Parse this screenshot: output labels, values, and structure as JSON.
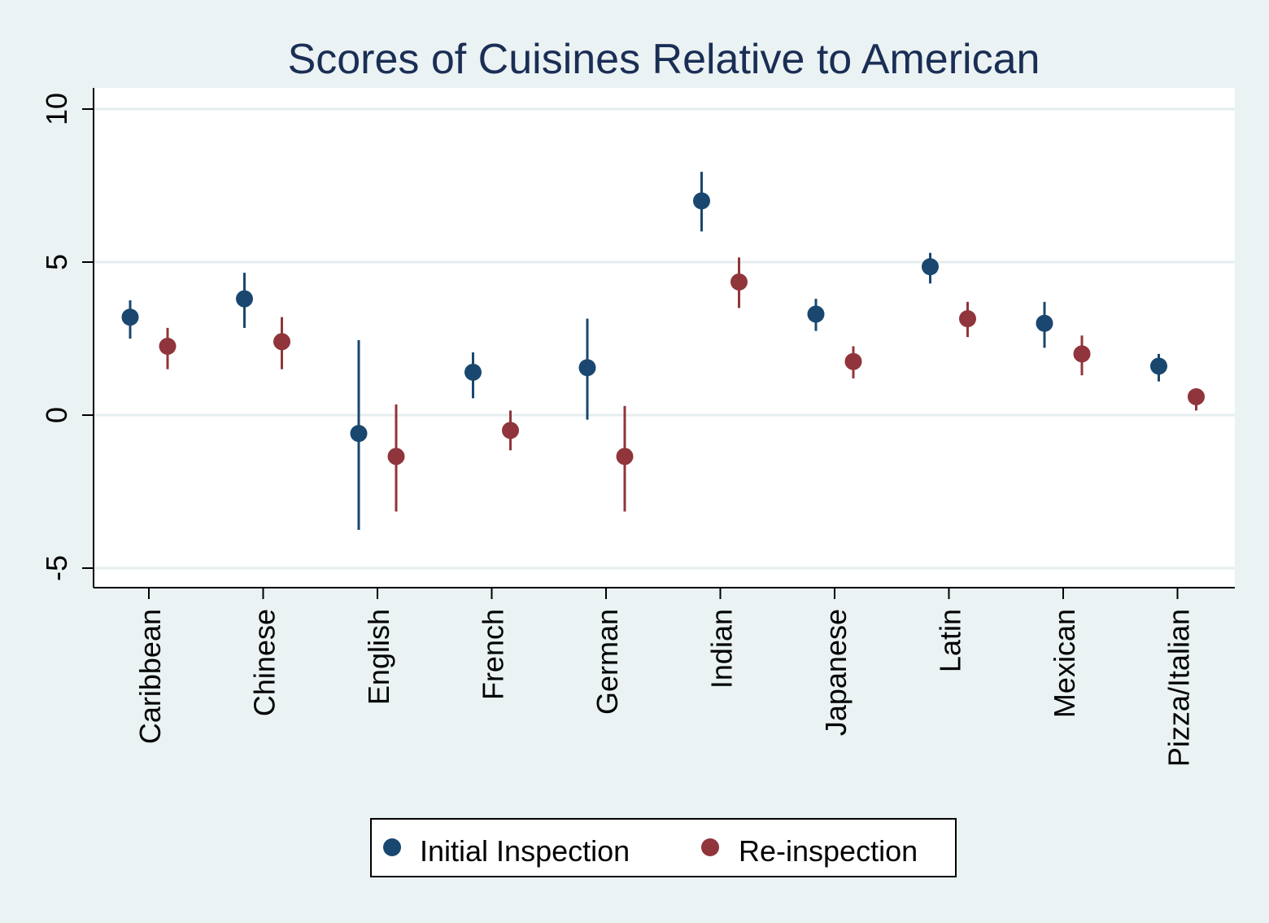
{
  "chart_data": {
    "type": "scatter",
    "title": "Scores of Cuisines Relative to American",
    "xlabel": "",
    "ylabel": "",
    "ylim": [
      -5.6,
      10.7
    ],
    "yticks": [
      -5,
      0,
      5,
      10
    ],
    "ytick_labels": [
      "-5",
      "0",
      "5",
      "10"
    ],
    "grid": true,
    "legend_position": "bottom",
    "categories": [
      "Caribbean",
      "Chinese",
      "English",
      "French",
      "German",
      "Indian",
      "Japanese",
      "Latin",
      "Mexican",
      "Pizza/Italian"
    ],
    "series": [
      {
        "name": "Initial Inspection",
        "color": "#1a476f",
        "values": [
          3.2,
          3.8,
          -0.6,
          1.4,
          1.55,
          7.0,
          3.3,
          4.85,
          3.0,
          1.6
        ],
        "lower": [
          2.5,
          2.85,
          -3.75,
          0.55,
          -0.15,
          6.0,
          2.75,
          4.3,
          2.2,
          1.1
        ],
        "upper": [
          3.75,
          4.65,
          2.45,
          2.05,
          3.15,
          7.95,
          3.8,
          5.3,
          3.7,
          2.0
        ]
      },
      {
        "name": "Re-inspection",
        "color": "#90353b",
        "values": [
          2.25,
          2.4,
          -1.35,
          -0.5,
          -1.35,
          4.35,
          1.75,
          3.15,
          2.0,
          0.6
        ],
        "lower": [
          1.5,
          1.5,
          -3.15,
          -1.15,
          -3.15,
          3.5,
          1.2,
          2.55,
          1.3,
          0.15
        ],
        "upper": [
          2.85,
          3.2,
          0.35,
          0.15,
          0.3,
          5.15,
          2.25,
          3.7,
          2.6,
          0.85
        ]
      }
    ]
  },
  "legend": {
    "items": [
      "Initial Inspection",
      "Re-inspection"
    ]
  }
}
